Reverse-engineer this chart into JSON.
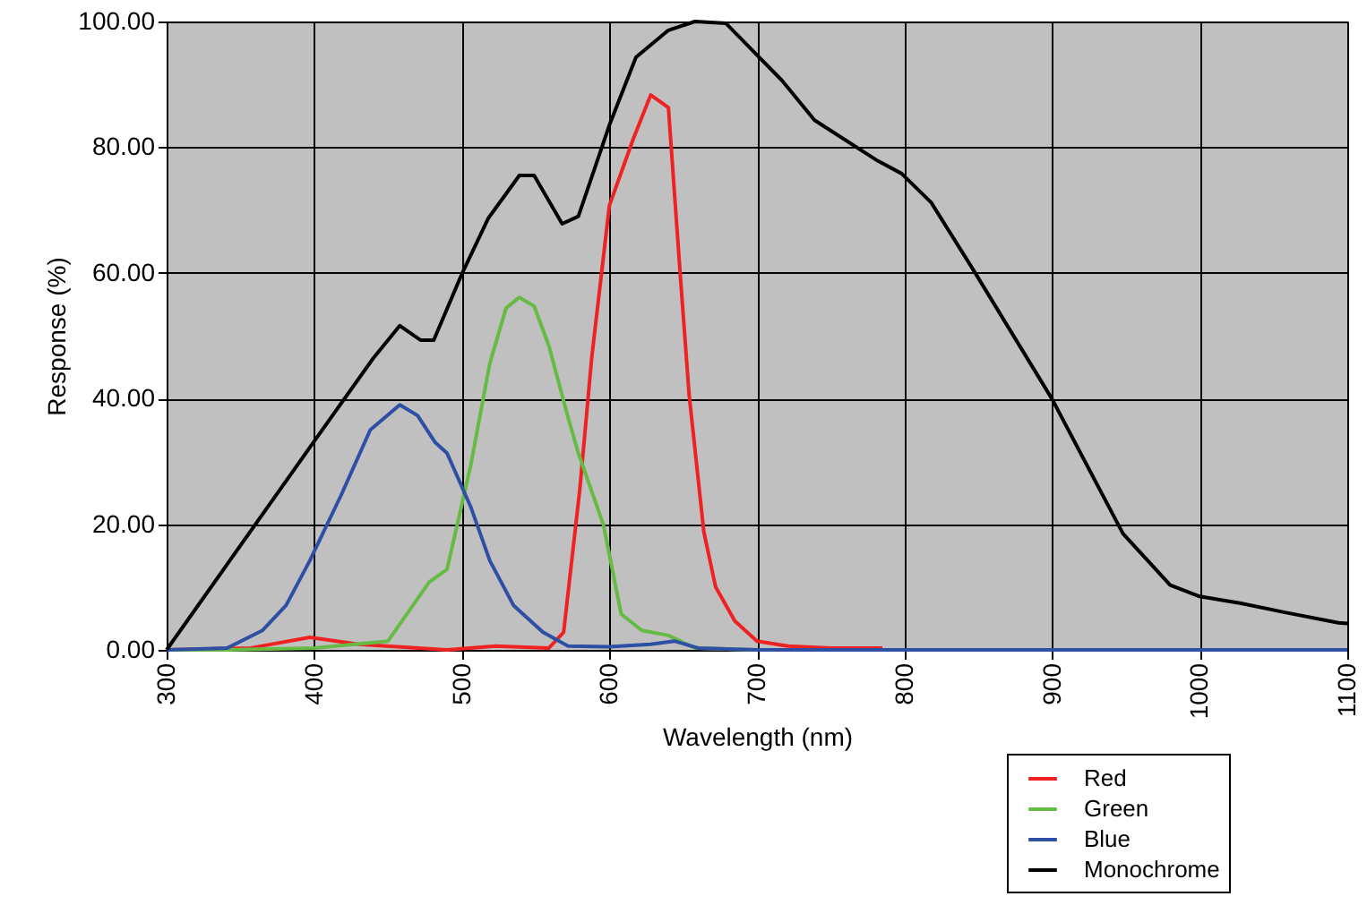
{
  "chart_data": {
    "type": "line",
    "xlabel": "Wavelength (nm)",
    "ylabel": "Response (%)",
    "xlim": [
      300,
      1100
    ],
    "xticks": [
      300,
      400,
      500,
      600,
      700,
      800,
      900,
      1000,
      1100
    ],
    "ylim": [
      0,
      100
    ],
    "yticks": [
      {
        "value": 0,
        "label": "0.00"
      },
      {
        "value": 20,
        "label": "20.00"
      },
      {
        "value": 40,
        "label": "40.00"
      },
      {
        "value": 60,
        "label": "60.00"
      },
      {
        "value": 80,
        "label": "80.00"
      },
      {
        "value": 100,
        "label": "100.00"
      }
    ],
    "grid": true,
    "legend": "bottom right",
    "series": [
      {
        "name": "Red",
        "color": "#ee2222",
        "x": [
          300,
          357,
          397,
          430,
          490,
          523,
          559,
          569,
          580,
          588,
          600,
          616,
          628,
          640,
          648,
          654,
          664,
          672,
          685,
          700,
          721,
          750,
          785
        ],
        "values": [
          0,
          0.3,
          2,
          0.9,
          0,
          0.6,
          0.3,
          2.8,
          25.6,
          46.4,
          70.7,
          81.2,
          88.3,
          86.3,
          59.8,
          40.7,
          18.8,
          10,
          4.6,
          1.4,
          0.6,
          0.3,
          0.3
        ]
      },
      {
        "name": "Green",
        "color": "#66bb44",
        "x": [
          300,
          340,
          400,
          450,
          478,
          490,
          506,
          519,
          530,
          539,
          549,
          559,
          572,
          579,
          596,
          608,
          622,
          640,
          658,
          700
        ],
        "values": [
          0,
          0,
          0.3,
          1.4,
          10.8,
          12.8,
          29.3,
          45.6,
          54.4,
          56.1,
          54.7,
          48.4,
          37,
          31.3,
          19.9,
          5.7,
          3.1,
          2.3,
          0.3,
          0
        ]
      },
      {
        "name": "Blue",
        "color": "#2e4fa3",
        "x": [
          300,
          341,
          365,
          381,
          397,
          418,
          438,
          458,
          470,
          482,
          490,
          506,
          519,
          535,
          555,
          572,
          600,
          628,
          644,
          660,
          700,
          800,
          1100
        ],
        "values": [
          0,
          0.3,
          3.1,
          7.1,
          14.2,
          24.5,
          35,
          39,
          37.3,
          33,
          31.3,
          22.8,
          14.2,
          7.1,
          2.8,
          0.6,
          0.5,
          0.9,
          1.4,
          0.3,
          0,
          0,
          0
        ]
      },
      {
        "name": "Monochrome",
        "color": "#000000",
        "x": [
          300,
          397,
          440,
          458,
          472,
          481,
          500,
          518,
          539,
          549,
          568,
          579,
          600,
          618,
          640,
          658,
          679,
          697,
          717,
          739,
          782,
          798,
          818,
          846,
          900,
          948,
          980,
          1000,
          1028,
          1057,
          1094,
          1100
        ],
        "values": [
          0,
          32.2,
          46.4,
          51.6,
          49.3,
          49.3,
          59.8,
          68.7,
          75.5,
          75.5,
          67.8,
          69,
          83.5,
          94.3,
          98.6,
          100,
          99.7,
          95.4,
          90.6,
          84.3,
          77.8,
          75.8,
          71.2,
          60.7,
          39.9,
          18.5,
          10.3,
          8.5,
          7.4,
          6,
          4.3,
          4.2
        ]
      }
    ]
  }
}
